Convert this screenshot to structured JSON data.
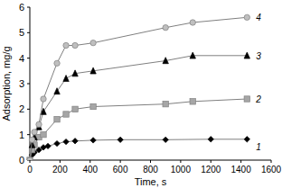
{
  "chart_data": {
    "type": "line",
    "x_label": "Time, s",
    "y_label": "Adsorption, mg/g",
    "xlim": [
      0,
      1600
    ],
    "xticks": [
      0,
      200,
      400,
      600,
      800,
      1000,
      1200,
      1400,
      1600
    ],
    "ylim": [
      0,
      6
    ],
    "yticks": [
      0,
      1,
      2,
      3,
      4,
      5,
      6
    ],
    "grid": false,
    "series": [
      {
        "name": "1",
        "color": "#000000",
        "marker": "diamond",
        "x": [
          0,
          15,
          30,
          60,
          90,
          120,
          180,
          240,
          300,
          420,
          600,
          900,
          1200,
          1440
        ],
        "values": [
          0,
          0.2,
          0.3,
          0.4,
          0.5,
          0.55,
          0.65,
          0.72,
          0.75,
          0.78,
          0.8,
          0.8,
          0.82,
          0.82
        ]
      },
      {
        "name": "2",
        "color": "#a6a6a6",
        "marker": "square",
        "x": [
          0,
          15,
          30,
          60,
          90,
          180,
          240,
          300,
          420,
          900,
          1080,
          1440
        ],
        "values": [
          0,
          0.4,
          0.6,
          0.9,
          1.0,
          1.6,
          1.8,
          2.0,
          2.1,
          2.2,
          2.3,
          2.4
        ]
      },
      {
        "name": "3",
        "color": "#000000",
        "marker": "triangle",
        "x": [
          0,
          15,
          30,
          60,
          90,
          180,
          240,
          300,
          420,
          900,
          1080,
          1440
        ],
        "values": [
          0,
          0.6,
          0.9,
          1.3,
          1.9,
          2.7,
          3.2,
          3.4,
          3.5,
          3.9,
          4.1,
          4.1
        ]
      },
      {
        "name": "4",
        "color": "#bfbfbf",
        "marker": "circle",
        "x": [
          0,
          15,
          30,
          60,
          90,
          180,
          240,
          300,
          420,
          900,
          1080,
          1440
        ],
        "values": [
          0,
          0.8,
          1.1,
          1.4,
          2.4,
          3.8,
          4.5,
          4.5,
          4.6,
          5.2,
          5.4,
          5.6
        ]
      }
    ]
  }
}
